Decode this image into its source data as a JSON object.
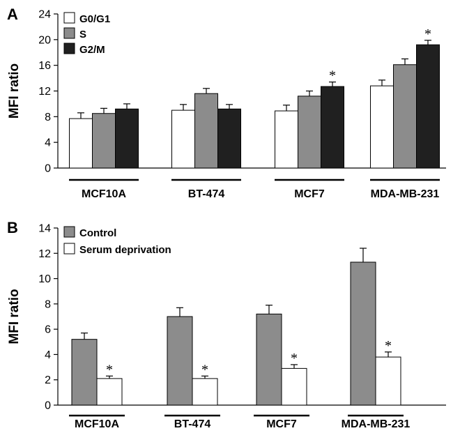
{
  "colors": {
    "white": "#ffffff",
    "gray": "#8c8c8c",
    "black": "#202020"
  },
  "chart_data": [
    {
      "type": "bar",
      "panel": "A",
      "title": "",
      "xlabel": "",
      "ylabel": "MFI ratio",
      "ylim": [
        0,
        24
      ],
      "yticks": [
        0,
        4,
        8,
        12,
        16,
        20,
        24
      ],
      "categories": [
        "MCF10A",
        "BT-474",
        "MCF7",
        "MDA-MB-231"
      ],
      "legend_position": "top-left",
      "series": [
        {
          "name": "G0/G1",
          "color": "white",
          "values": [
            7.7,
            9.0,
            8.9,
            12.8
          ],
          "errors": [
            0.9,
            0.9,
            0.9,
            0.9
          ],
          "significant": [
            false,
            false,
            false,
            false
          ]
        },
        {
          "name": "S",
          "color": "gray",
          "values": [
            8.5,
            11.6,
            11.2,
            16.1
          ],
          "errors": [
            0.8,
            0.8,
            0.8,
            0.9
          ],
          "significant": [
            false,
            false,
            false,
            false
          ]
        },
        {
          "name": "G2/M",
          "color": "black",
          "values": [
            9.2,
            9.2,
            12.7,
            19.2
          ],
          "errors": [
            0.8,
            0.7,
            0.7,
            0.7
          ],
          "significant": [
            false,
            false,
            true,
            true
          ]
        }
      ],
      "significance_marker": "*"
    },
    {
      "type": "bar",
      "panel": "B",
      "title": "",
      "xlabel": "",
      "ylabel": "MFI ratio",
      "ylim": [
        0,
        14
      ],
      "yticks": [
        0,
        2,
        4,
        6,
        8,
        10,
        12,
        14
      ],
      "categories": [
        "MCF10A",
        "BT-474",
        "MCF7",
        "MDA-MB-231"
      ],
      "legend_position": "top-left",
      "series": [
        {
          "name": "Control",
          "color": "gray",
          "values": [
            5.2,
            7.0,
            7.2,
            11.3
          ],
          "errors": [
            0.5,
            0.7,
            0.7,
            1.1
          ],
          "significant": [
            false,
            false,
            false,
            false
          ]
        },
        {
          "name": "Serum deprivation",
          "color": "white",
          "values": [
            2.1,
            2.1,
            2.9,
            3.8
          ],
          "errors": [
            0.2,
            0.2,
            0.3,
            0.4
          ],
          "significant": [
            true,
            true,
            true,
            true
          ]
        }
      ],
      "significance_marker": "*"
    }
  ]
}
